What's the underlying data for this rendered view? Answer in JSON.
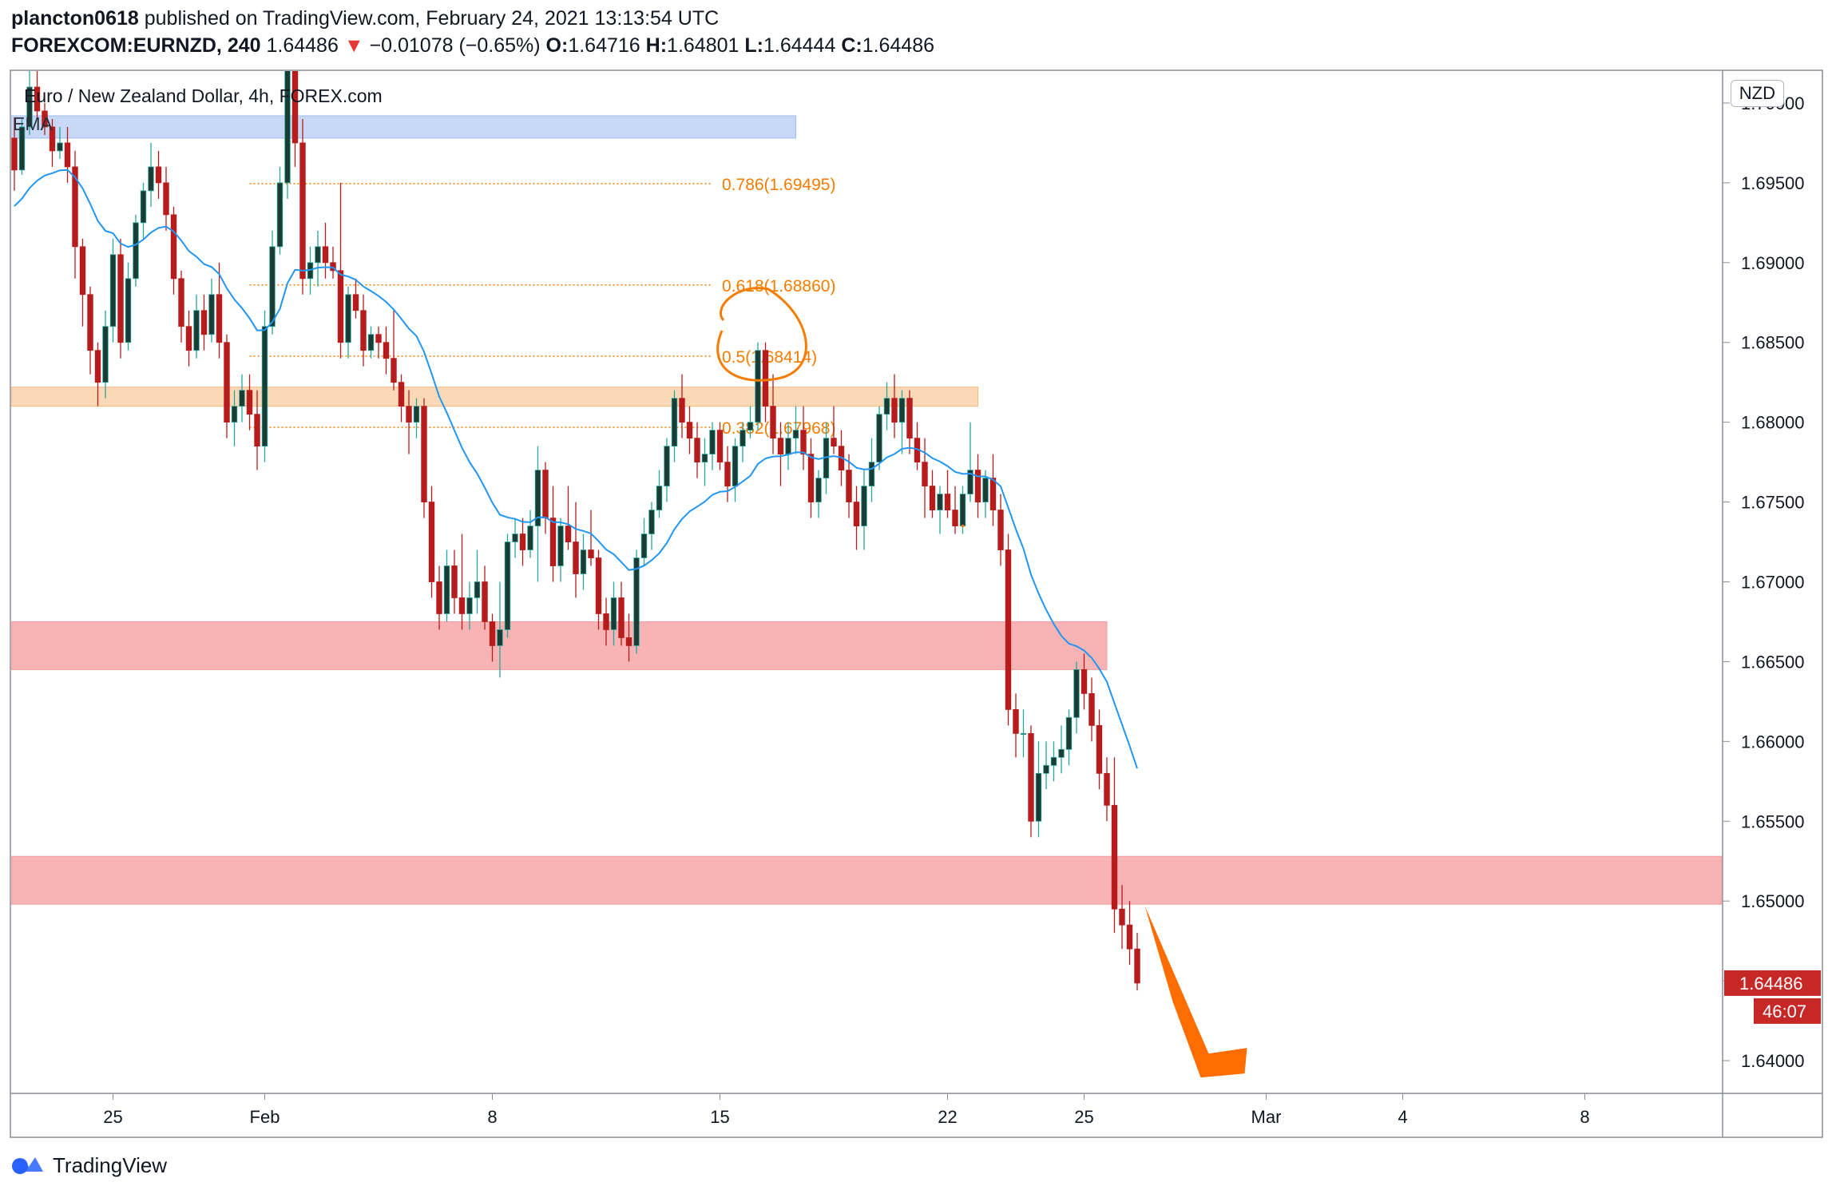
{
  "header": {
    "author": "plancton0618",
    "published_text": " published on TradingView.com, February 24, 2021 13:13:54 UTC",
    "symbol": "FOREXCOM:EURNZD, 240",
    "price": "1.64486",
    "change_arrow": "▼",
    "change": "−0.01078 (−0.65%)",
    "o_label": "O:",
    "o_value": "1.64716",
    "h_label": "H:",
    "h_value": "1.64801",
    "l_label": "L:",
    "l_value": "1.64444",
    "c_label": "C:",
    "c_value": "1.64486"
  },
  "legend": {
    "title": "Euro / New Zealand Dollar, 4h, FOREX.com",
    "indicator": "EMA"
  },
  "currency_badge": "NZD",
  "footer": {
    "brand": "TradingView"
  },
  "colors": {
    "up_candle": "#26a69a",
    "up_candle_body": "#1b3b35",
    "down_candle": "#b71c1c",
    "ema": "#2196f3",
    "fib": "#f57c00",
    "zone_red": "#f8b4b4",
    "zone_orange": "#fcd9b6",
    "zone_blue": "#c7d9f7",
    "arrow": "#ff6d00",
    "price_tag": "#c62828"
  },
  "chart_data": {
    "type": "candlestick",
    "symbol": "FOREXCOM:EURNZD",
    "timeframe": "4h",
    "ylim": [
      1.638,
      1.702
    ],
    "y_ticks": [
      "1.64000",
      "1.64500",
      "1.65000",
      "1.65500",
      "1.66000",
      "1.66500",
      "1.67000",
      "1.67500",
      "1.68000",
      "1.68500",
      "1.69000",
      "1.69500",
      "1.70000"
    ],
    "x_ticks": [
      {
        "label": "25",
        "t": 13
      },
      {
        "label": "Feb",
        "t": 33
      },
      {
        "label": "8",
        "t": 63
      },
      {
        "label": "15",
        "t": 93
      },
      {
        "label": "22",
        "t": 123
      },
      {
        "label": "25",
        "t": 141
      },
      {
        "label": "Mar",
        "t": 165
      },
      {
        "label": "4",
        "t": 183
      },
      {
        "label": "8",
        "t": 207
      }
    ],
    "last_price": "1.64486",
    "countdown": "46:07",
    "fib_levels": [
      {
        "label": "0.786(1.69495)",
        "value": 1.69495
      },
      {
        "label": "0.618(1.68860)",
        "value": 1.6886
      },
      {
        "label": "0.5(1.68414)",
        "value": 1.68414
      },
      {
        "label": "0.382(1.67968)",
        "value": 1.67968
      }
    ],
    "zones": [
      {
        "kind": "blue",
        "from": 1.6978,
        "to": 1.6992,
        "t0": -1,
        "t1": 103
      },
      {
        "kind": "orange",
        "from": 1.681,
        "to": 1.6822,
        "t0": -1,
        "t1": 127
      },
      {
        "kind": "red",
        "from": 1.6645,
        "to": 1.6675,
        "t0": -1,
        "t1": 144
      },
      {
        "kind": "red",
        "from": 1.6498,
        "to": 1.6528,
        "t0": -1,
        "t1": "end"
      }
    ],
    "candles": [
      [
        1.6978,
        1.6991,
        1.6945,
        1.6958
      ],
      [
        1.6958,
        1.699,
        1.6955,
        1.6985
      ],
      [
        1.6985,
        1.703,
        1.698,
        1.701
      ],
      [
        1.701,
        1.703,
        1.699,
        1.6995
      ],
      [
        1.6995,
        1.7,
        1.698,
        1.6985
      ],
      [
        1.6985,
        1.699,
        1.696,
        1.697
      ],
      [
        1.697,
        1.6985,
        1.6965,
        1.6975
      ],
      [
        1.6975,
        1.6985,
        1.695,
        1.696
      ],
      [
        1.696,
        1.697,
        1.689,
        1.691
      ],
      [
        1.691,
        1.6915,
        1.686,
        1.688
      ],
      [
        1.688,
        1.6885,
        1.683,
        1.6845
      ],
      [
        1.6845,
        1.685,
        1.681,
        1.6825
      ],
      [
        1.6825,
        1.687,
        1.6815,
        1.686
      ],
      [
        1.686,
        1.6915,
        1.685,
        1.6905
      ],
      [
        1.6905,
        1.6915,
        1.684,
        1.685
      ],
      [
        1.685,
        1.69,
        1.6845,
        1.689
      ],
      [
        1.689,
        1.693,
        1.6885,
        1.6925
      ],
      [
        1.6925,
        1.695,
        1.6915,
        1.6945
      ],
      [
        1.6945,
        1.6975,
        1.6935,
        1.696
      ],
      [
        1.696,
        1.697,
        1.694,
        1.695
      ],
      [
        1.695,
        1.696,
        1.692,
        1.693
      ],
      [
        1.693,
        1.6935,
        1.688,
        1.689
      ],
      [
        1.689,
        1.6895,
        1.685,
        1.686
      ],
      [
        1.686,
        1.687,
        1.6835,
        1.6845
      ],
      [
        1.6845,
        1.688,
        1.684,
        1.687
      ],
      [
        1.687,
        1.688,
        1.6845,
        1.6855
      ],
      [
        1.6855,
        1.689,
        1.685,
        1.688
      ],
      [
        1.688,
        1.69,
        1.684,
        1.685
      ],
      [
        1.685,
        1.6855,
        1.679,
        1.68
      ],
      [
        1.68,
        1.682,
        1.6785,
        1.681
      ],
      [
        1.681,
        1.683,
        1.68,
        1.682
      ],
      [
        1.682,
        1.683,
        1.6795,
        1.6805
      ],
      [
        1.6805,
        1.682,
        1.677,
        1.6785
      ],
      [
        1.6785,
        1.687,
        1.6775,
        1.686
      ],
      [
        1.686,
        1.692,
        1.6855,
        1.691
      ],
      [
        1.691,
        1.696,
        1.6905,
        1.695
      ],
      [
        1.695,
        1.705,
        1.694,
        1.704
      ],
      [
        1.704,
        1.706,
        1.696,
        1.6975
      ],
      [
        1.6975,
        1.699,
        1.688,
        1.689
      ],
      [
        1.689,
        1.691,
        1.688,
        1.69
      ],
      [
        1.69,
        1.692,
        1.6885,
        1.691
      ],
      [
        1.691,
        1.6925,
        1.689,
        1.69
      ],
      [
        1.69,
        1.691,
        1.689,
        1.6895
      ],
      [
        1.6895,
        1.695,
        1.684,
        1.685
      ],
      [
        1.685,
        1.6885,
        1.684,
        1.688
      ],
      [
        1.688,
        1.689,
        1.6865,
        1.687
      ],
      [
        1.687,
        1.688,
        1.6835,
        1.6845
      ],
      [
        1.6845,
        1.686,
        1.684,
        1.6855
      ],
      [
        1.6855,
        1.686,
        1.684,
        1.685
      ],
      [
        1.685,
        1.686,
        1.683,
        1.684
      ],
      [
        1.684,
        1.687,
        1.682,
        1.6825
      ],
      [
        1.6825,
        1.683,
        1.68,
        1.681
      ],
      [
        1.681,
        1.682,
        1.678,
        1.68
      ],
      [
        1.68,
        1.6815,
        1.679,
        1.681
      ],
      [
        1.681,
        1.6815,
        1.674,
        1.675
      ],
      [
        1.675,
        1.676,
        1.669,
        1.67
      ],
      [
        1.67,
        1.671,
        1.667,
        1.668
      ],
      [
        1.668,
        1.672,
        1.6675,
        1.671
      ],
      [
        1.671,
        1.672,
        1.668,
        1.669
      ],
      [
        1.669,
        1.673,
        1.667,
        1.668
      ],
      [
        1.668,
        1.67,
        1.667,
        1.669
      ],
      [
        1.669,
        1.672,
        1.668,
        1.67
      ],
      [
        1.67,
        1.671,
        1.667,
        1.6675
      ],
      [
        1.6675,
        1.668,
        1.665,
        1.666
      ],
      [
        1.666,
        1.67,
        1.664,
        1.667
      ],
      [
        1.667,
        1.673,
        1.6665,
        1.6725
      ],
      [
        1.6725,
        1.674,
        1.6715,
        1.673
      ],
      [
        1.673,
        1.674,
        1.671,
        1.672
      ],
      [
        1.672,
        1.6745,
        1.6715,
        1.6735
      ],
      [
        1.6735,
        1.6785,
        1.67,
        1.677
      ],
      [
        1.677,
        1.6775,
        1.673,
        1.674
      ],
      [
        1.674,
        1.676,
        1.67,
        1.671
      ],
      [
        1.671,
        1.674,
        1.67,
        1.6735
      ],
      [
        1.6735,
        1.676,
        1.672,
        1.6725
      ],
      [
        1.6725,
        1.675,
        1.669,
        1.6705
      ],
      [
        1.6705,
        1.673,
        1.6695,
        1.672
      ],
      [
        1.672,
        1.6745,
        1.671,
        1.6715
      ],
      [
        1.6715,
        1.672,
        1.667,
        1.668
      ],
      [
        1.668,
        1.669,
        1.666,
        1.667
      ],
      [
        1.667,
        1.67,
        1.666,
        1.669
      ],
      [
        1.669,
        1.67,
        1.666,
        1.6665
      ],
      [
        1.6665,
        1.668,
        1.665,
        1.666
      ],
      [
        1.666,
        1.672,
        1.6655,
        1.6715
      ],
      [
        1.6715,
        1.674,
        1.671,
        1.673
      ],
      [
        1.673,
        1.675,
        1.672,
        1.6745
      ],
      [
        1.6745,
        1.677,
        1.674,
        1.676
      ],
      [
        1.676,
        1.679,
        1.675,
        1.6785
      ],
      [
        1.6785,
        1.682,
        1.6775,
        1.6815
      ],
      [
        1.6815,
        1.683,
        1.679,
        1.68
      ],
      [
        1.68,
        1.681,
        1.678,
        1.679
      ],
      [
        1.679,
        1.68,
        1.6765,
        1.6775
      ],
      [
        1.6775,
        1.679,
        1.676,
        1.678
      ],
      [
        1.678,
        1.68,
        1.677,
        1.6795
      ],
      [
        1.6795,
        1.68,
        1.677,
        1.6775
      ],
      [
        1.6775,
        1.6785,
        1.675,
        1.676
      ],
      [
        1.676,
        1.679,
        1.675,
        1.6785
      ],
      [
        1.6785,
        1.68,
        1.6775,
        1.6795
      ],
      [
        1.6795,
        1.681,
        1.679,
        1.68
      ],
      [
        1.68,
        1.685,
        1.6795,
        1.6845
      ],
      [
        1.6845,
        1.685,
        1.68,
        1.681
      ],
      [
        1.681,
        1.683,
        1.678,
        1.679
      ],
      [
        1.679,
        1.68,
        1.676,
        1.678
      ],
      [
        1.678,
        1.68,
        1.677,
        1.679
      ],
      [
        1.679,
        1.681,
        1.678,
        1.6795
      ],
      [
        1.6795,
        1.681,
        1.677,
        1.678
      ],
      [
        1.678,
        1.679,
        1.674,
        1.675
      ],
      [
        1.675,
        1.677,
        1.674,
        1.6765
      ],
      [
        1.6765,
        1.68,
        1.6755,
        1.679
      ],
      [
        1.679,
        1.681,
        1.678,
        1.6785
      ],
      [
        1.6785,
        1.6795,
        1.676,
        1.677
      ],
      [
        1.677,
        1.678,
        1.674,
        1.675
      ],
      [
        1.675,
        1.676,
        1.672,
        1.6735
      ],
      [
        1.6735,
        1.677,
        1.672,
        1.676
      ],
      [
        1.676,
        1.679,
        1.675,
        1.6775
      ],
      [
        1.6775,
        1.681,
        1.677,
        1.6805
      ],
      [
        1.6805,
        1.6825,
        1.6795,
        1.6815
      ],
      [
        1.6815,
        1.683,
        1.679,
        1.68
      ],
      [
        1.68,
        1.682,
        1.678,
        1.6815
      ],
      [
        1.6815,
        1.682,
        1.678,
        1.679
      ],
      [
        1.679,
        1.68,
        1.677,
        1.6775
      ],
      [
        1.6775,
        1.679,
        1.674,
        1.676
      ],
      [
        1.676,
        1.677,
        1.674,
        1.6745
      ],
      [
        1.6745,
        1.676,
        1.673,
        1.6755
      ],
      [
        1.6755,
        1.677,
        1.674,
        1.6745
      ],
      [
        1.6745,
        1.676,
        1.673,
        1.6735
      ],
      [
        1.6735,
        1.676,
        1.673,
        1.6755
      ],
      [
        1.6755,
        1.68,
        1.675,
        1.677
      ],
      [
        1.677,
        1.678,
        1.674,
        1.675
      ],
      [
        1.675,
        1.677,
        1.674,
        1.6765
      ],
      [
        1.6765,
        1.678,
        1.6735,
        1.6745
      ],
      [
        1.6745,
        1.6755,
        1.671,
        1.672
      ],
      [
        1.672,
        1.673,
        1.661,
        1.662
      ],
      [
        1.662,
        1.663,
        1.659,
        1.6605
      ],
      [
        1.6605,
        1.662,
        1.659,
        1.6605
      ],
      [
        1.6605,
        1.661,
        1.654,
        1.655
      ],
      [
        1.655,
        1.66,
        1.654,
        1.658
      ],
      [
        1.658,
        1.66,
        1.657,
        1.6585
      ],
      [
        1.6585,
        1.66,
        1.6575,
        1.659
      ],
      [
        1.659,
        1.661,
        1.658,
        1.6595
      ],
      [
        1.6595,
        1.662,
        1.6585,
        1.6615
      ],
      [
        1.6615,
        1.665,
        1.6605,
        1.6645
      ],
      [
        1.6645,
        1.6655,
        1.662,
        1.663
      ],
      [
        1.663,
        1.664,
        1.66,
        1.661
      ],
      [
        1.661,
        1.662,
        1.657,
        1.658
      ],
      [
        1.658,
        1.659,
        1.655,
        1.656
      ],
      [
        1.656,
        1.659,
        1.648,
        1.6495
      ],
      [
        1.6495,
        1.651,
        1.647,
        1.6485
      ],
      [
        1.6485,
        1.65,
        1.646,
        1.647
      ],
      [
        1.647,
        1.648,
        1.6444,
        1.64486
      ]
    ]
  }
}
